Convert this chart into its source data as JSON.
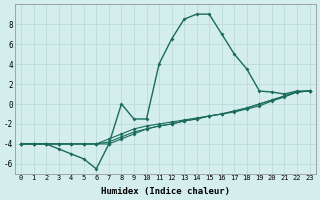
{
  "xlabel": "Humidex (Indice chaleur)",
  "bg_color": "#d4eded",
  "grid_color": "#b8d8d8",
  "line_color": "#1a6b5a",
  "xlim": [
    -0.5,
    23.5
  ],
  "ylim": [
    -7,
    10
  ],
  "xticks": [
    0,
    1,
    2,
    3,
    4,
    5,
    6,
    7,
    8,
    9,
    10,
    11,
    12,
    13,
    14,
    15,
    16,
    17,
    18,
    19,
    20,
    21,
    22,
    23
  ],
  "yticks": [
    -6,
    -4,
    -2,
    0,
    2,
    4,
    6,
    8
  ],
  "series1_x": [
    0,
    1,
    2,
    3,
    4,
    5,
    6,
    7,
    8,
    9,
    10,
    11,
    12,
    13,
    14,
    15,
    16,
    17,
    18,
    19,
    20,
    21,
    22,
    23
  ],
  "series1_y": [
    -4,
    -4,
    -4,
    -4,
    -4,
    -4,
    -4,
    -3.5,
    -3.0,
    -2.5,
    -2.2,
    -2.0,
    -1.8,
    -1.6,
    -1.4,
    -1.2,
    -1.0,
    -0.8,
    -0.5,
    -0.2,
    0.3,
    0.7,
    1.2,
    1.3
  ],
  "series2_x": [
    0,
    1,
    2,
    3,
    4,
    5,
    6,
    7,
    8,
    9,
    10,
    11,
    12,
    13,
    14,
    15,
    16,
    17,
    18,
    19,
    20,
    21,
    22,
    23
  ],
  "series2_y": [
    -4,
    -4,
    -4,
    -4,
    -4,
    -4,
    -4,
    -3.8,
    -3.3,
    -2.8,
    -2.5,
    -2.2,
    -2.0,
    -1.7,
    -1.5,
    -1.2,
    -1.0,
    -0.7,
    -0.4,
    0.0,
    0.4,
    0.8,
    1.2,
    1.3
  ],
  "series3_x": [
    0,
    1,
    2,
    3,
    4,
    5,
    6,
    7,
    8,
    9,
    10,
    11,
    12,
    13,
    14,
    15,
    16,
    17,
    18,
    19,
    20,
    21,
    22,
    23
  ],
  "series3_y": [
    -4,
    -4,
    -4,
    -4,
    -4,
    -4,
    -4,
    -4,
    -3.5,
    -3.0,
    -2.5,
    -2.2,
    -2.0,
    -1.7,
    -1.5,
    -1.2,
    -1.0,
    -0.7,
    -0.4,
    0.0,
    0.4,
    0.8,
    1.2,
    1.3
  ],
  "series4_x": [
    0,
    1,
    2,
    3,
    4,
    5,
    6,
    7,
    8,
    9,
    10,
    11,
    12,
    13,
    14,
    15,
    16,
    17,
    18,
    19,
    20,
    21,
    22,
    23
  ],
  "series4_y": [
    -4,
    -4,
    -4,
    -4.5,
    -5,
    -5.5,
    -6.5,
    -4,
    0,
    -1.5,
    -1.5,
    4,
    6.5,
    8.5,
    9,
    9,
    7,
    5,
    3.5,
    1.3,
    1.2,
    1.0,
    1.3,
    1.3
  ]
}
